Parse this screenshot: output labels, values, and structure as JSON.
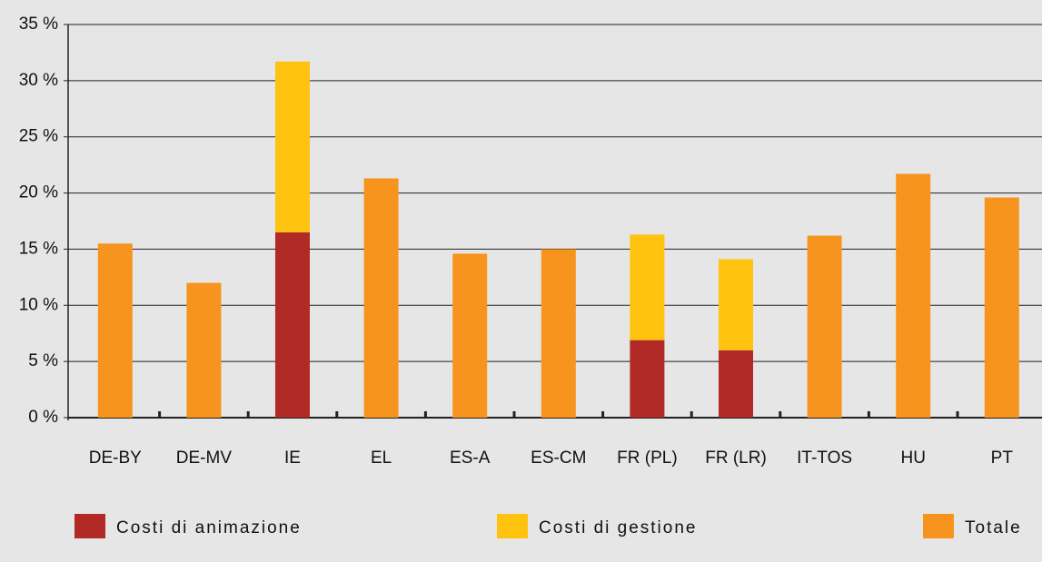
{
  "chart_data": {
    "type": "stacked-bar",
    "categories": [
      "DE-BY",
      "DE-MV",
      "IE",
      "EL",
      "ES-A",
      "ES-CM",
      "FR (PL)",
      "FR (LR)",
      "IT-TOS",
      "HU",
      "PT"
    ],
    "series": [
      {
        "name": "Costi di animazione",
        "color": "#b22a26",
        "values": [
          null,
          null,
          16.5,
          null,
          null,
          null,
          6.9,
          6.0,
          null,
          null,
          null
        ]
      },
      {
        "name": "Costi di gestione",
        "color": "#ffc20e",
        "values": [
          null,
          null,
          15.2,
          null,
          null,
          null,
          9.4,
          8.1,
          null,
          null,
          null
        ]
      },
      {
        "name": "Totale",
        "color": "#f7941d",
        "values": [
          15.5,
          12.0,
          null,
          21.3,
          14.6,
          15.0,
          null,
          null,
          16.2,
          21.7,
          19.6
        ]
      }
    ],
    "ylim": [
      0,
      35
    ],
    "yticks": [
      {
        "value": 0,
        "label": "0 %"
      },
      {
        "value": 5,
        "label": "5 %"
      },
      {
        "value": 10,
        "label": "10 %"
      },
      {
        "value": 15,
        "label": "15 %"
      },
      {
        "value": 20,
        "label": "20 %"
      },
      {
        "value": 25,
        "label": "25 %"
      },
      {
        "value": 30,
        "label": "30 %"
      },
      {
        "value": 35,
        "label": "35 %"
      }
    ],
    "grid": true
  }
}
